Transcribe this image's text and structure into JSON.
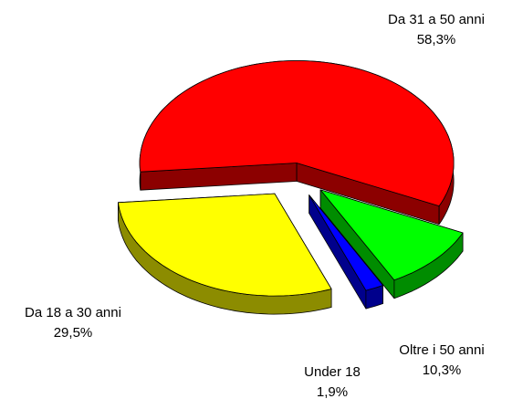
{
  "chart_data": {
    "type": "pie",
    "categories": [
      "Da 31 a 50 anni",
      "Oltre i 50 anni",
      "Under 18",
      "Da 18 a 30 anni"
    ],
    "values": [
      58.3,
      10.3,
      1.9,
      29.5
    ],
    "value_labels": [
      "58,3%",
      "10,3%",
      "1,9%",
      "29,5%"
    ],
    "colors": [
      "#ff0000",
      "#00ff00",
      "#0000ff",
      "#ffff00"
    ]
  }
}
